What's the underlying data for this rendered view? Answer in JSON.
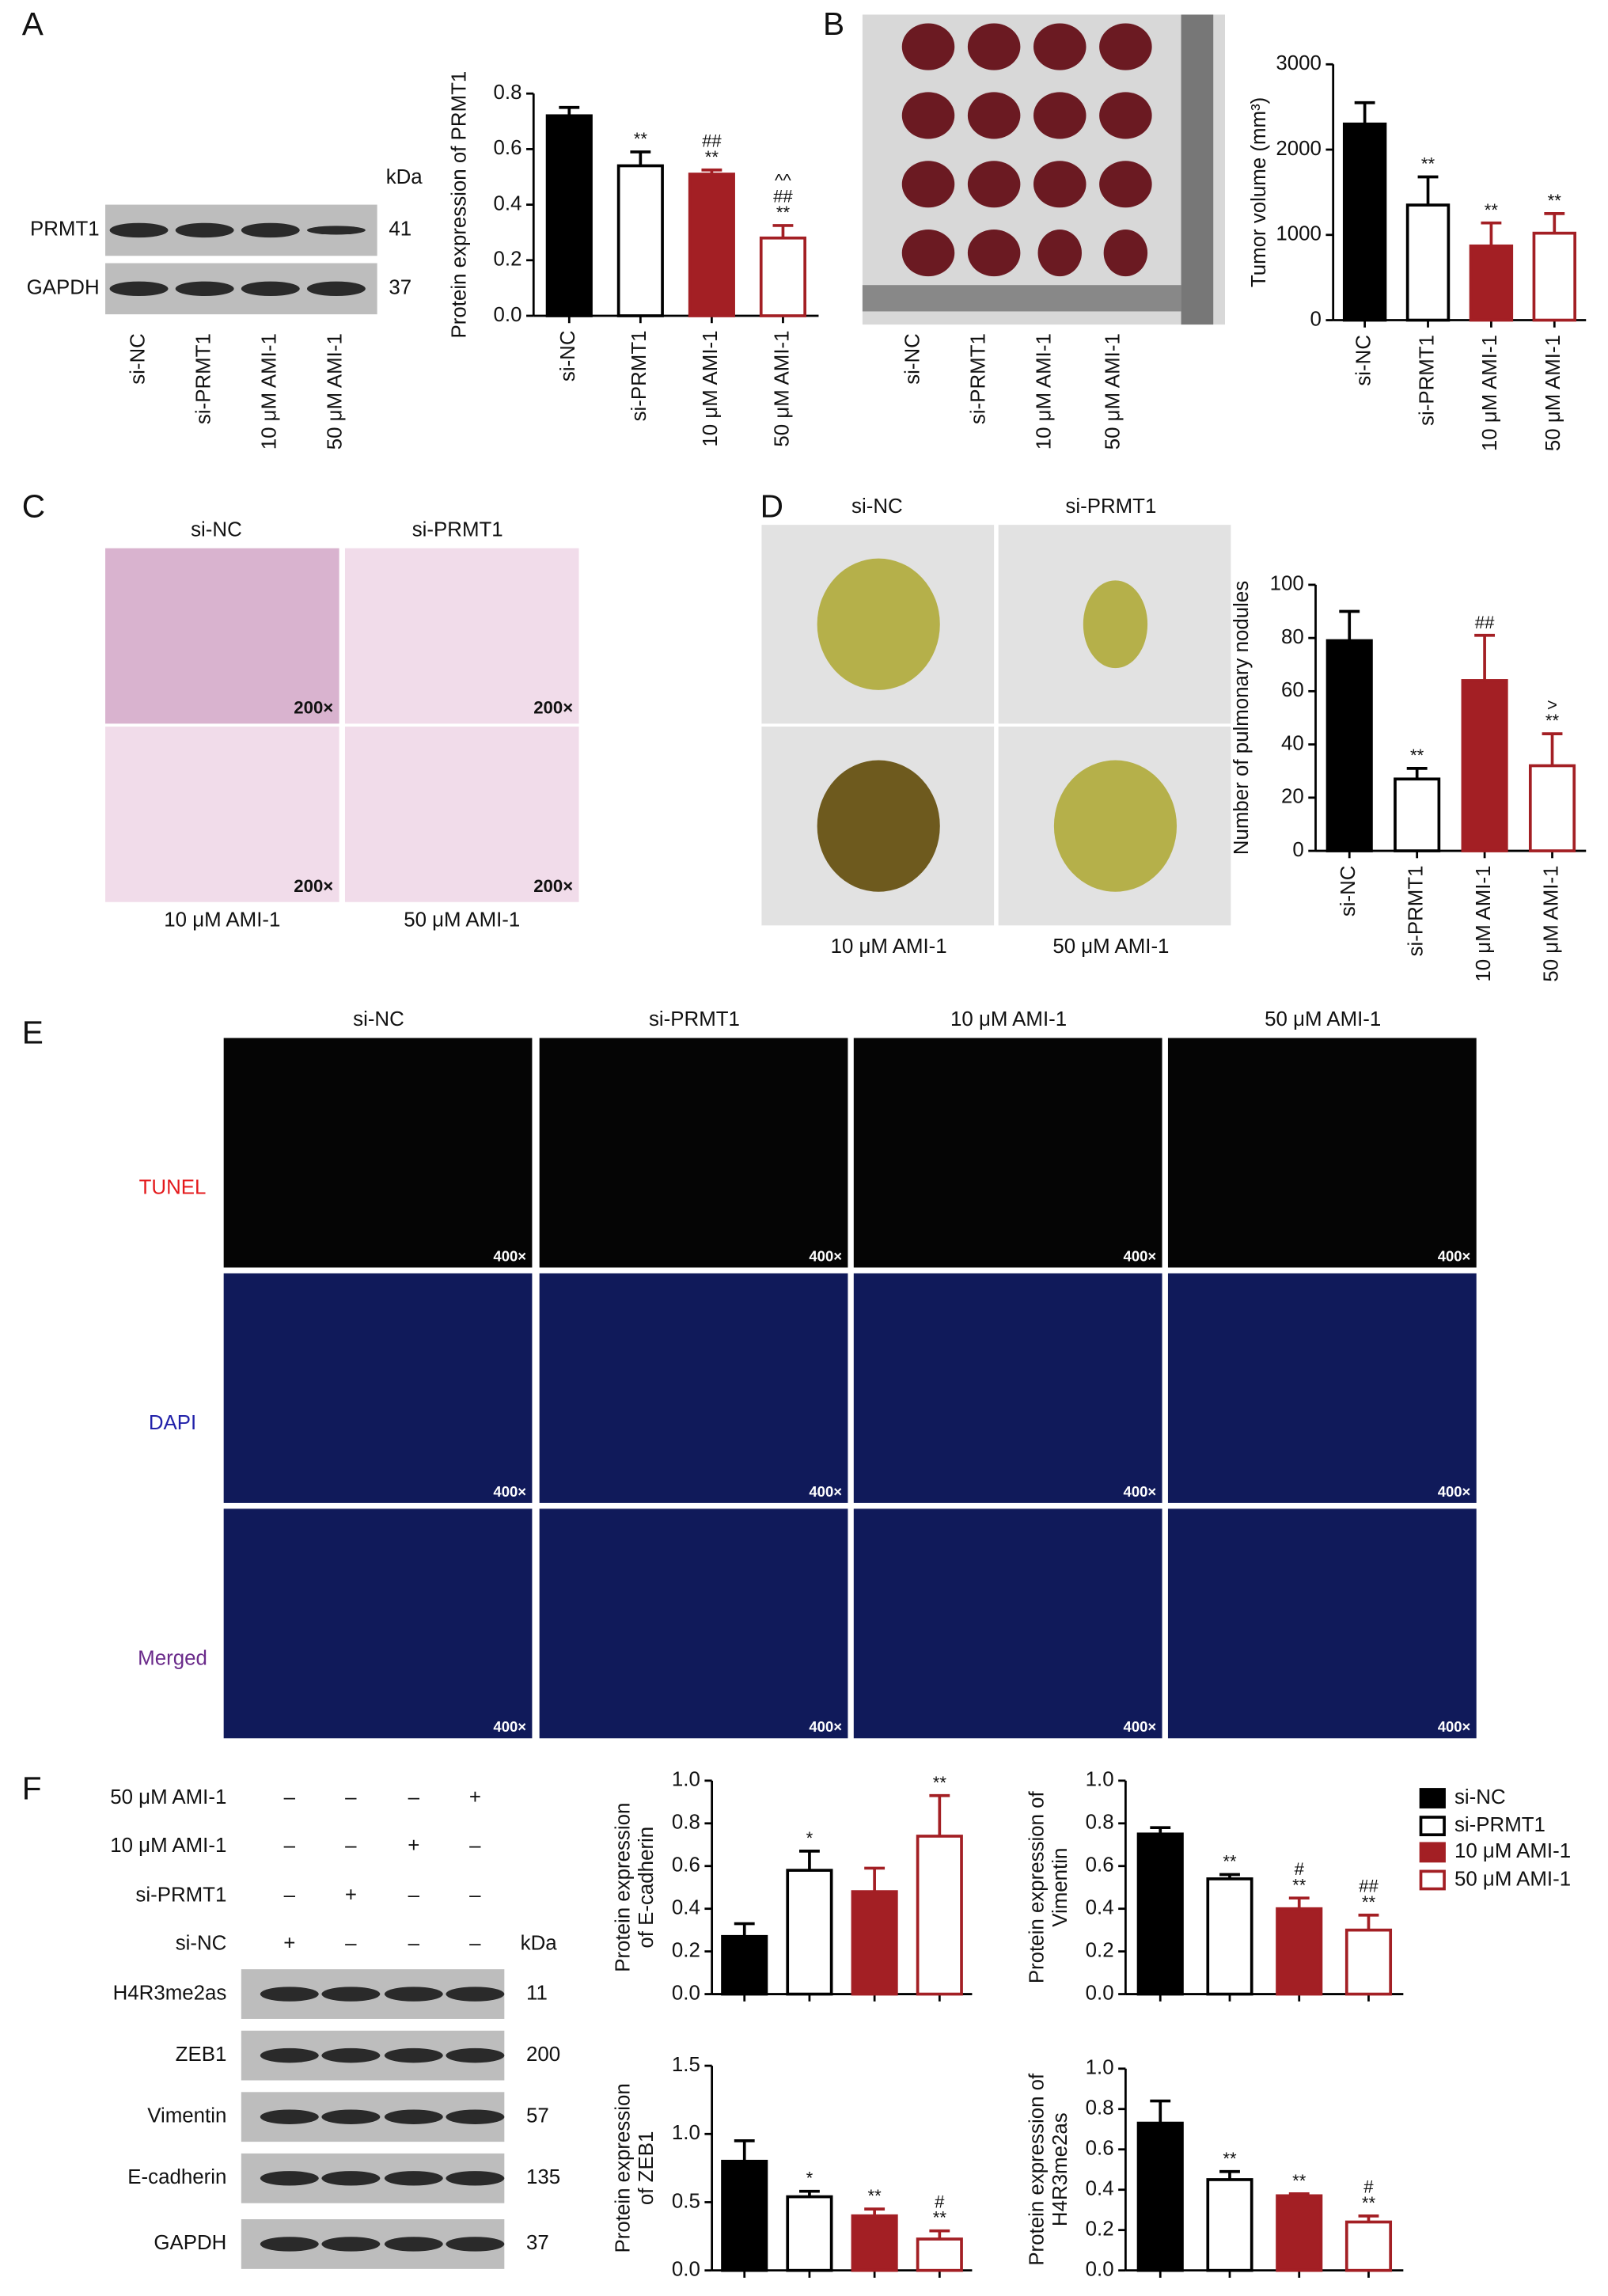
{
  "chart_data": [
    {
      "type": "bar",
      "ylabel": [
        "Protein expression of PRMT1"
      ],
      "categories": [
        "si-NC",
        "si-PRMT1",
        "10 μM AMI-1",
        "50 μM AMI-1"
      ],
      "values": [
        0.72,
        0.54,
        0.51,
        0.28
      ],
      "errors": [
        0.03,
        0.05,
        0.015,
        0.045
      ],
      "annotations": [
        [],
        [
          "**"
        ],
        [
          "##",
          "**"
        ],
        [
          "^^",
          "##",
          "**"
        ]
      ],
      "colors": [
        "#000000",
        "#ffffff",
        "#a31f24",
        "#ffffff"
      ],
      "edgecolors": [
        "#000000",
        "#000000",
        "#a31f24",
        "#a31f24"
      ],
      "ylim": [
        0,
        0.8
      ],
      "yticks": [
        {
          "value": 0,
          "label": "0.0"
        },
        0.2,
        0.4,
        0.6,
        0.8
      ]
    },
    {
      "type": "bar",
      "ylabel": [
        "Tumor volume (mm³)"
      ],
      "categories": [
        "si-NC",
        "si-PRMT1",
        "10 μM AMI-1",
        "50 μM AMI-1"
      ],
      "values": [
        2300,
        1350,
        870,
        1020
      ],
      "errors": [
        250,
        330,
        270,
        230
      ],
      "annotations": [
        [],
        [
          "**"
        ],
        [
          "**"
        ],
        [
          "**"
        ]
      ],
      "colors": [
        "#000000",
        "#ffffff",
        "#a31f24",
        "#ffffff"
      ],
      "edgecolors": [
        "#000000",
        "#000000",
        "#a31f24",
        "#a31f24"
      ],
      "ylim": [
        0,
        3000
      ],
      "yticks": [
        0,
        1000,
        2000,
        3000
      ]
    },
    {
      "type": "bar",
      "ylabel": [
        "Number of pulmonary nodules"
      ],
      "categories": [
        "si-NC",
        "si-PRMT1",
        "10 μM AMI-1",
        "50 μM AMI-1"
      ],
      "values": [
        79,
        27,
        64,
        32
      ],
      "errors": [
        11,
        4,
        17,
        12
      ],
      "annotations": [
        [],
        [
          "**"
        ],
        [
          "##"
        ],
        [
          ">",
          "**"
        ]
      ],
      "colors": [
        "#000000",
        "#ffffff",
        "#a31f24",
        "#ffffff"
      ],
      "edgecolors": [
        "#000000",
        "#000000",
        "#a31f24",
        "#a31f24"
      ],
      "ylim": [
        0,
        100
      ],
      "yticks": [
        0,
        20,
        40,
        60,
        80,
        100
      ]
    },
    {
      "type": "bar",
      "ylabel": [
        "Protein expression",
        "of E-cadherin"
      ],
      "values": [
        0.27,
        0.58,
        0.48,
        0.74
      ],
      "errors": [
        0.06,
        0.09,
        0.11,
        0.19
      ],
      "annotations": [
        [],
        [
          "*"
        ],
        [],
        [
          "**"
        ]
      ],
      "colors": [
        "#000000",
        "#ffffff",
        "#a31f24",
        "#ffffff"
      ],
      "edgecolors": [
        "#000000",
        "#000000",
        "#a31f24",
        "#a31f24"
      ],
      "ylim": [
        0,
        1.0
      ],
      "yticks": [
        {
          "value": 0,
          "label": "0.0"
        },
        0.2,
        0.4,
        0.6,
        0.8,
        {
          "value": 1.0,
          "label": "1.0"
        }
      ]
    },
    {
      "type": "bar",
      "ylabel": [
        "Protein expression of",
        "Vimentin"
      ],
      "values": [
        0.75,
        0.54,
        0.4,
        0.3
      ],
      "errors": [
        0.03,
        0.02,
        0.05,
        0.07
      ],
      "annotations": [
        [],
        [
          "**"
        ],
        [
          "#",
          "**"
        ],
        [
          "##",
          "**"
        ]
      ],
      "colors": [
        "#000000",
        "#ffffff",
        "#a31f24",
        "#ffffff"
      ],
      "edgecolors": [
        "#000000",
        "#000000",
        "#a31f24",
        "#a31f24"
      ],
      "ylim": [
        0,
        1.0
      ],
      "yticks": [
        {
          "value": 0,
          "label": "0.0"
        },
        0.2,
        0.4,
        0.6,
        0.8,
        {
          "value": 1.0,
          "label": "1.0"
        }
      ]
    },
    {
      "type": "bar",
      "ylabel": [
        "Protein expression",
        "of ZEB1"
      ],
      "values": [
        0.8,
        0.54,
        0.4,
        0.23
      ],
      "errors": [
        0.15,
        0.04,
        0.05,
        0.06
      ],
      "annotations": [
        [],
        [
          "*"
        ],
        [
          "**"
        ],
        [
          "#",
          "**"
        ]
      ],
      "colors": [
        "#000000",
        "#ffffff",
        "#a31f24",
        "#ffffff"
      ],
      "edgecolors": [
        "#000000",
        "#000000",
        "#a31f24",
        "#a31f24"
      ],
      "ylim": [
        0,
        1.5
      ],
      "yticks": [
        {
          "value": 0,
          "label": "0.0"
        },
        0.5,
        {
          "value": 1.0,
          "label": "1.0"
        },
        1.5
      ]
    },
    {
      "type": "bar",
      "ylabel": [
        "Protein expression of",
        "H4R3me2as"
      ],
      "values": [
        0.73,
        0.45,
        0.37,
        0.24
      ],
      "errors": [
        0.11,
        0.04,
        0.01,
        0.03
      ],
      "annotations": [
        [],
        [
          "**"
        ],
        [
          "**"
        ],
        [
          "#",
          "**"
        ]
      ],
      "colors": [
        "#000000",
        "#ffffff",
        "#a31f24",
        "#ffffff"
      ],
      "edgecolors": [
        "#000000",
        "#000000",
        "#a31f24",
        "#a31f24"
      ],
      "ylim": [
        0,
        1.0
      ],
      "yticks": [
        {
          "value": 0,
          "label": "0.0"
        },
        0.2,
        0.4,
        0.6,
        0.8,
        {
          "value": 1.0,
          "label": "1.0"
        }
      ]
    }
  ],
  "panel_letters": [
    "A",
    "B",
    "C",
    "D",
    "E",
    "F"
  ],
  "blot_A": {
    "kda": "kDa",
    "rows": [
      {
        "label": "PRMT1",
        "kda": "41"
      },
      {
        "label": "GAPDH",
        "kda": "37"
      }
    ],
    "lanes": [
      "si-NC",
      "si-PRMT1",
      "10 μM AMI-1",
      "50 μM AMI-1"
    ]
  },
  "photo_B": {
    "lanes": [
      "si-NC",
      "si-PRMT1",
      "10 μM AMI-1",
      "50 μM AMI-1"
    ]
  },
  "histology_C": {
    "labels": [
      "si-NC",
      "si-PRMT1",
      "10 μM AMI-1",
      "50 μM AMI-1"
    ],
    "magnification": [
      "200×",
      "200×",
      "200×",
      "200×"
    ]
  },
  "lungs_D": {
    "labels": [
      "si-NC",
      "si-PRMT1",
      "10 μM AMI-1",
      "50 μM AMI-1"
    ]
  },
  "tunel_E": {
    "columns": [
      "si-NC",
      "si-PRMT1",
      "10 μM AMI-1",
      "50 μM AMI-1"
    ],
    "rows": [
      {
        "label": "TUNEL",
        "color": "#e41a1c"
      },
      {
        "label": "DAPI",
        "color": "#2222aa"
      },
      {
        "label": "Merged",
        "color": "#6a2a8a"
      }
    ],
    "magnification": [
      "400×",
      "400×",
      "400×",
      "400×",
      "400×",
      "400×",
      "400×",
      "400×",
      "400×",
      "400×",
      "400×",
      "400×"
    ]
  },
  "blot_F": {
    "kda": "kDa",
    "treatments": [
      {
        "label": "50 μM AMI-1",
        "signs": [
          "–",
          "–",
          "–",
          "+"
        ]
      },
      {
        "label": "10 μM AMI-1",
        "signs": [
          "–",
          "–",
          "+",
          "–"
        ]
      },
      {
        "label": "si-PRMT1",
        "signs": [
          "–",
          "+",
          "–",
          "–"
        ]
      },
      {
        "label": "si-NC",
        "signs": [
          "+",
          "–",
          "–",
          "–"
        ]
      }
    ],
    "rows": [
      {
        "label": "H4R3me2as",
        "kda": "11"
      },
      {
        "label": "ZEB1",
        "kda": "200"
      },
      {
        "label": "Vimentin",
        "kda": "57"
      },
      {
        "label": "E-cadherin",
        "kda": "135"
      },
      {
        "label": "GAPDH",
        "kda": "37"
      }
    ]
  },
  "legend_F": [
    {
      "name": "si-NC",
      "color": "#000000",
      "edgecolor": "#000000"
    },
    {
      "name": "si-PRMT1",
      "color": "#ffffff",
      "edgecolor": "#000000"
    },
    {
      "name": "10 μM AMI-1",
      "color": "#a31f24",
      "edgecolor": "#a31f24"
    },
    {
      "name": "50 μM AMI-1",
      "color": "#ffffff",
      "edgecolor": "#a31f24"
    }
  ]
}
